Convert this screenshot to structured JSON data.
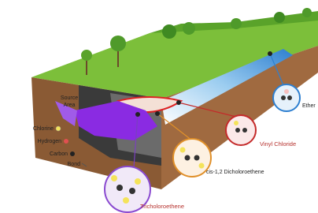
{
  "source_area": [
    "Source",
    "Area"
  ],
  "legend": [
    "Chlorine",
    "Hydrogen",
    "Carbon",
    "Bond"
  ],
  "molecules": [
    "Tricholoroethene",
    "cis-1,2 Dicholoroethene",
    "Vinyl Chloride",
    "Ether"
  ]
}
